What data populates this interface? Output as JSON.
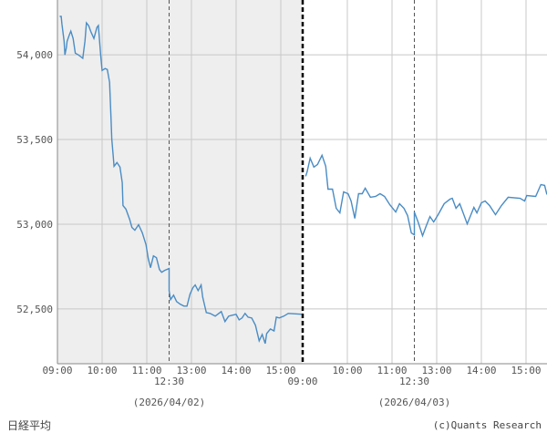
{
  "chart_data": {
    "type": "line",
    "title": "日経平均",
    "credit": "(c)Quants Research",
    "ylim": [
      52176,
      54324
    ],
    "yticks": [
      52500,
      53000,
      53500,
      54000
    ],
    "ytick_labels": [
      "52,500",
      "53,000",
      "53,500",
      "54,000"
    ],
    "grid": true,
    "line_color": "#4a8cc4",
    "past_day_background": "#eeeeee",
    "days": [
      {
        "date_label": "(2026/04/02)",
        "xtick_labels": [
          "09:00",
          "10:00",
          "11:00",
          "13:00",
          "14:00",
          "15:00"
        ],
        "break_label": "12:30",
        "morning": [
          [
            "09:03",
            54227
          ],
          [
            "09:05",
            54227
          ],
          [
            "09:06",
            54183
          ],
          [
            "09:09",
            54081
          ],
          [
            "09:10",
            54000
          ],
          [
            "09:12",
            54043
          ],
          [
            "09:13",
            54080
          ],
          [
            "09:16",
            54119
          ],
          [
            "09:18",
            54140
          ],
          [
            "09:21",
            54097
          ],
          [
            "09:24",
            54010
          ],
          [
            "09:28",
            54000
          ],
          [
            "09:31",
            53990
          ],
          [
            "09:34",
            53980
          ],
          [
            "09:37",
            54081
          ],
          [
            "09:39",
            54189
          ],
          [
            "09:42",
            54172
          ],
          [
            "09:45",
            54135
          ],
          [
            "09:49",
            54097
          ],
          [
            "09:53",
            54162
          ],
          [
            "09:55",
            54173
          ],
          [
            "09:58",
            54000
          ],
          [
            "10:00",
            53908
          ],
          [
            "10:04",
            53919
          ],
          [
            "10:07",
            53914
          ],
          [
            "10:10",
            53838
          ],
          [
            "10:11",
            53730
          ],
          [
            "10:12",
            53622
          ],
          [
            "10:13",
            53504
          ],
          [
            "10:15",
            53396
          ],
          [
            "10:16",
            53342
          ],
          [
            "10:20",
            53364
          ],
          [
            "10:24",
            53337
          ],
          [
            "10:27",
            53245
          ],
          [
            "10:28",
            53110
          ],
          [
            "10:32",
            53089
          ],
          [
            "10:37",
            53029
          ],
          [
            "10:40",
            52981
          ],
          [
            "10:44",
            52964
          ],
          [
            "10:49",
            52997
          ],
          [
            "10:54",
            52949
          ],
          [
            "10:59",
            52878
          ],
          [
            "11:02",
            52797
          ],
          [
            "11:05",
            52743
          ],
          [
            "11:09",
            52813
          ],
          [
            "11:13",
            52802
          ],
          [
            "11:17",
            52732
          ],
          [
            "11:20",
            52716
          ],
          [
            "11:24",
            52727
          ],
          [
            "11:30",
            52738
          ]
        ],
        "afternoon": [
          [
            "12:30",
            52608
          ],
          [
            "12:32",
            52554
          ],
          [
            "12:36",
            52581
          ],
          [
            "12:40",
            52543
          ],
          [
            "12:45",
            52527
          ],
          [
            "12:50",
            52516
          ],
          [
            "12:54",
            52516
          ],
          [
            "12:58",
            52587
          ],
          [
            "13:02",
            52625
          ],
          [
            "13:05",
            52641
          ],
          [
            "13:09",
            52608
          ],
          [
            "13:13",
            52641
          ],
          [
            "13:15",
            52570
          ],
          [
            "13:20",
            52478
          ],
          [
            "13:25",
            52473
          ],
          [
            "13:32",
            52457
          ],
          [
            "13:40",
            52484
          ],
          [
            "13:45",
            52425
          ],
          [
            "13:50",
            52457
          ],
          [
            "13:54",
            52462
          ],
          [
            "14:00",
            52468
          ],
          [
            "14:04",
            52435
          ],
          [
            "14:08",
            52446
          ],
          [
            "14:12",
            52473
          ],
          [
            "14:16",
            52451
          ],
          [
            "14:21",
            52446
          ],
          [
            "14:26",
            52403
          ],
          [
            "14:31",
            52311
          ],
          [
            "14:35",
            52349
          ],
          [
            "14:39",
            52295
          ],
          [
            "14:41",
            52354
          ],
          [
            "14:46",
            52381
          ],
          [
            "14:51",
            52370
          ],
          [
            "14:54",
            52451
          ],
          [
            "14:58",
            52446
          ],
          [
            "15:04",
            52457
          ],
          [
            "15:10",
            52473
          ],
          [
            "15:30",
            52468
          ]
        ]
      },
      {
        "date_label": "(2026/04/03)",
        "xtick_labels": [
          "09:00",
          "10:00",
          "11:00",
          "13:00",
          "14:00",
          "15:00"
        ],
        "break_label": "12:30",
        "morning": [
          [
            "09:04",
            53283
          ],
          [
            "09:06",
            53310
          ],
          [
            "09:10",
            53390
          ],
          [
            "09:15",
            53337
          ],
          [
            "09:20",
            53353
          ],
          [
            "09:26",
            53407
          ],
          [
            "09:31",
            53342
          ],
          [
            "09:34",
            53207
          ],
          [
            "09:40",
            53207
          ],
          [
            "09:45",
            53094
          ],
          [
            "09:50",
            53067
          ],
          [
            "09:55",
            53191
          ],
          [
            "10:01",
            53180
          ],
          [
            "10:05",
            53137
          ],
          [
            "10:10",
            53034
          ],
          [
            "10:15",
            53180
          ],
          [
            "10:20",
            53180
          ],
          [
            "10:24",
            53213
          ],
          [
            "10:31",
            53159
          ],
          [
            "10:38",
            53164
          ],
          [
            "10:44",
            53180
          ],
          [
            "10:50",
            53164
          ],
          [
            "10:57",
            53115
          ],
          [
            "11:05",
            53072
          ],
          [
            "11:10",
            53121
          ],
          [
            "11:16",
            53094
          ],
          [
            "11:21",
            53051
          ],
          [
            "11:26",
            52948
          ],
          [
            "11:30",
            52937
          ]
        ],
        "afternoon": [
          [
            "12:30",
            53072
          ],
          [
            "12:35",
            53013
          ],
          [
            "12:41",
            52932
          ],
          [
            "12:46",
            52991
          ],
          [
            "12:51",
            53045
          ],
          [
            "12:56",
            53013
          ],
          [
            "13:02",
            53056
          ],
          [
            "13:10",
            53121
          ],
          [
            "13:18",
            53148
          ],
          [
            "13:21",
            53153
          ],
          [
            "13:26",
            53094
          ],
          [
            "13:31",
            53121
          ],
          [
            "13:41",
            53002
          ],
          [
            "13:50",
            53099
          ],
          [
            "13:54",
            53067
          ],
          [
            "14:00",
            53126
          ],
          [
            "14:05",
            53137
          ],
          [
            "14:11",
            53110
          ],
          [
            "14:19",
            53056
          ],
          [
            "14:27",
            53110
          ],
          [
            "14:36",
            53159
          ],
          [
            "14:52",
            53153
          ],
          [
            "14:58",
            53137
          ],
          [
            "15:01",
            53169
          ],
          [
            "15:13",
            53164
          ],
          [
            "15:20",
            53234
          ],
          [
            "15:25",
            53229
          ],
          [
            "15:28",
            53175
          ]
        ]
      }
    ]
  }
}
